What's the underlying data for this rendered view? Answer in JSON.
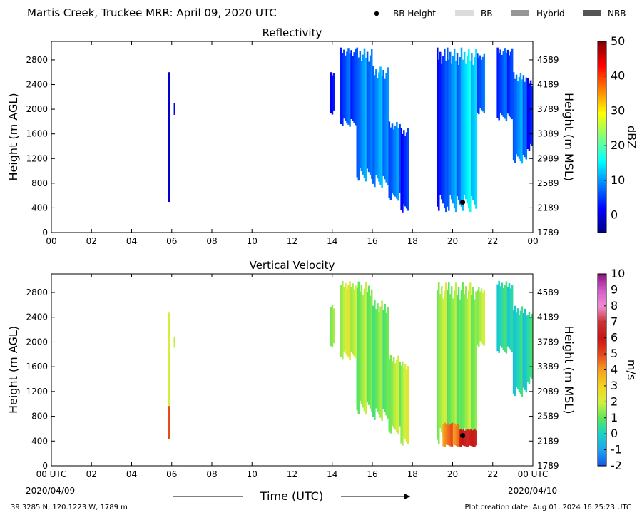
{
  "header": {
    "title": "Martis Creek, Truckee MRR:  April 09, 2020 UTC",
    "legend": [
      {
        "label": "BB Height",
        "kind": "dot",
        "color": "#000000"
      },
      {
        "label": "BB",
        "kind": "box",
        "color": "#dcdcdc"
      },
      {
        "label": "Hybrid",
        "kind": "box",
        "color": "#969696"
      },
      {
        "label": "NBB",
        "kind": "box",
        "color": "#555555"
      }
    ]
  },
  "footer": {
    "location": "39.3285 N, 120.1223 W, 1789 m",
    "created": "Plot creation date: Aug 01, 2024 16:25:23 UTC",
    "xlabel": "Time (UTC)",
    "start_date": "2020/04/09",
    "end_date": "2020/04/10"
  },
  "chart_data": [
    {
      "type": "heatmap",
      "title": "Reflectivity",
      "xlabel": "",
      "ylabel": "Height (m AGL)",
      "y2label": "Height (m MSL)",
      "xlim": [
        0,
        24
      ],
      "ylim": [
        0,
        3100
      ],
      "x_ticks": [
        "00",
        "02",
        "04",
        "06",
        "08",
        "10",
        "12",
        "14",
        "16",
        "18",
        "20",
        "22",
        "00"
      ],
      "y_ticks": [
        0,
        400,
        800,
        1200,
        1600,
        2000,
        2400,
        2800
      ],
      "y2_ticks": [
        "1789",
        "2189",
        "2589",
        "2989",
        "3389",
        "3789",
        "4189",
        "4589"
      ],
      "grid": false,
      "colorbar": {
        "label": "dBZ",
        "min": -5,
        "max": 50,
        "ticks": [
          0,
          10,
          20,
          30,
          40,
          50
        ],
        "colormap": "jet"
      },
      "bb_height": [
        {
          "time": 20.5,
          "height": 490
        }
      ],
      "echo_segments": [
        {
          "t0": 5.8,
          "t1": 5.9,
          "bottom": 400,
          "top": 2600,
          "value": 2
        },
        {
          "t0": 6.1,
          "t1": 6.15,
          "bottom": 1900,
          "top": 2100,
          "value": 3
        },
        {
          "t0": 13.9,
          "t1": 14.1,
          "bottom": 1900,
          "top": 2600,
          "value": 4
        },
        {
          "t0": 14.4,
          "t1": 15.2,
          "bottom": 1700,
          "top": 3000,
          "value": 6
        },
        {
          "t0": 15.2,
          "t1": 16.0,
          "bottom": 800,
          "top": 3000,
          "value": 9
        },
        {
          "t0": 16.0,
          "t1": 16.8,
          "bottom": 700,
          "top": 2700,
          "value": 10
        },
        {
          "t0": 16.8,
          "t1": 17.4,
          "bottom": 500,
          "top": 1800,
          "value": 8
        },
        {
          "t0": 17.4,
          "t1": 17.8,
          "bottom": 300,
          "top": 1700,
          "value": 4
        },
        {
          "t0": 19.2,
          "t1": 19.7,
          "bottom": 300,
          "top": 3000,
          "value": 4
        },
        {
          "t0": 19.7,
          "t1": 20.4,
          "bottom": 300,
          "top": 3000,
          "value": 9
        },
        {
          "t0": 20.4,
          "t1": 21.2,
          "bottom": 300,
          "top": 3000,
          "value": 14
        },
        {
          "t0": 21.2,
          "t1": 21.6,
          "bottom": 1900,
          "top": 2900,
          "value": 7
        },
        {
          "t0": 22.2,
          "t1": 23.0,
          "bottom": 1800,
          "top": 3000,
          "value": 6
        },
        {
          "t0": 23.0,
          "t1": 23.7,
          "bottom": 1100,
          "top": 2600,
          "value": 9
        },
        {
          "t0": 23.7,
          "t1": 24.0,
          "bottom": 1300,
          "top": 2500,
          "value": 4
        }
      ]
    },
    {
      "type": "heatmap",
      "title": "Vertical Velocity",
      "xlabel": "Time (UTC)",
      "ylabel": "Height (m AGL)",
      "y2label": "Height (m MSL)",
      "xlim": [
        0,
        24
      ],
      "ylim": [
        0,
        3100
      ],
      "x_ticks": [
        "00 UTC",
        "02",
        "04",
        "06",
        "08",
        "10",
        "12",
        "14",
        "16",
        "18",
        "20",
        "22",
        "00 UTC"
      ],
      "y_ticks": [
        0,
        400,
        800,
        1200,
        1600,
        2000,
        2400,
        2800
      ],
      "y2_ticks": [
        "1789",
        "2189",
        "2589",
        "2989",
        "3389",
        "3789",
        "4189",
        "4589"
      ],
      "grid": false,
      "colorbar": {
        "label": "m/s",
        "min": -2,
        "max": 10,
        "ticks": [
          -2,
          -1,
          0,
          1,
          2,
          3,
          4,
          5,
          6,
          7,
          8,
          9,
          10
        ]
      },
      "bb_height": [
        {
          "time": 20.5,
          "height": 490
        }
      ],
      "echo_segments": [
        {
          "t0": 5.8,
          "t1": 5.9,
          "bottom": 400,
          "top": 2600,
          "value": 2.6
        },
        {
          "t0": 5.8,
          "t1": 5.9,
          "bottom": 400,
          "top": 1000,
          "value": 5.5
        },
        {
          "t0": 6.1,
          "t1": 6.15,
          "bottom": 1900,
          "top": 2100,
          "value": 2.4
        },
        {
          "t0": 13.9,
          "t1": 14.1,
          "bottom": 1900,
          "top": 2600,
          "value": 1.8
        },
        {
          "t0": 14.4,
          "t1": 15.2,
          "bottom": 1700,
          "top": 3000,
          "value": 2.0
        },
        {
          "t0": 15.2,
          "t1": 16.0,
          "bottom": 800,
          "top": 3000,
          "value": 1.4
        },
        {
          "t0": 16.0,
          "t1": 16.8,
          "bottom": 700,
          "top": 2700,
          "value": 1.2
        },
        {
          "t0": 16.8,
          "t1": 17.4,
          "bottom": 500,
          "top": 1800,
          "value": 1.6
        },
        {
          "t0": 17.4,
          "t1": 17.8,
          "bottom": 300,
          "top": 1700,
          "value": 2.0
        },
        {
          "t0": 19.2,
          "t1": 19.7,
          "bottom": 300,
          "top": 3000,
          "value": 1.7
        },
        {
          "t0": 19.7,
          "t1": 20.4,
          "bottom": 300,
          "top": 3000,
          "value": 1.3
        },
        {
          "t0": 20.4,
          "t1": 21.2,
          "bottom": 300,
          "top": 3000,
          "value": 1.5
        },
        {
          "t0": 21.2,
          "t1": 21.6,
          "bottom": 1900,
          "top": 2900,
          "value": 1.8
        },
        {
          "t0": 19.5,
          "t1": 20.3,
          "bottom": 300,
          "top": 700,
          "value": 4.5
        },
        {
          "t0": 20.3,
          "t1": 21.2,
          "bottom": 300,
          "top": 600,
          "value": 6.2
        },
        {
          "t0": 22.2,
          "t1": 23.0,
          "bottom": 1800,
          "top": 3000,
          "value": 0.3
        },
        {
          "t0": 23.0,
          "t1": 23.7,
          "bottom": 1100,
          "top": 2600,
          "value": 0.1
        },
        {
          "t0": 23.7,
          "t1": 24.0,
          "bottom": 1300,
          "top": 2500,
          "value": 0.8
        }
      ]
    }
  ]
}
